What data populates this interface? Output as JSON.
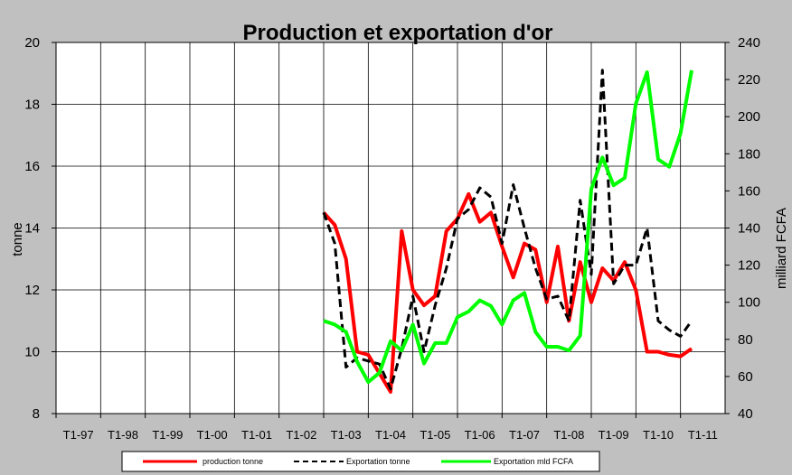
{
  "chart_data": {
    "type": "line",
    "title": "Production et exportation d'or",
    "ylabel_left": "tonne",
    "ylabel_right": "milliard FCFA",
    "ylim_left": [
      8,
      20
    ],
    "ylim_right": [
      40,
      240
    ],
    "yticks_left": [
      "8",
      "10",
      "12",
      "14",
      "16",
      "18",
      "20"
    ],
    "yticks_right": [
      "40",
      "60",
      "80",
      "100",
      "120",
      "140",
      "160",
      "180",
      "200",
      "220",
      "240"
    ],
    "x_categories": [
      "T1-97",
      "T1-98",
      "T1-99",
      "T1-00",
      "T1-01",
      "T1-02",
      "T1-03",
      "T1-04",
      "T1-05",
      "T1-06",
      "T1-07",
      "T1-08",
      "T1-09",
      "T1-10",
      "T1-11"
    ],
    "grid": true,
    "legend_position": "bottom",
    "series": [
      {
        "name": "production tonne",
        "axis": "left",
        "color": "#ff0000",
        "style": "solid",
        "values": [
          [
            2003.0,
            14.5
          ],
          [
            2003.25,
            14.1
          ],
          [
            2003.5,
            13.0
          ],
          [
            2003.75,
            10.0
          ],
          [
            2004.0,
            9.9
          ],
          [
            2004.25,
            9.3
          ],
          [
            2004.5,
            8.7
          ],
          [
            2004.75,
            13.9
          ],
          [
            2005.0,
            12.0
          ],
          [
            2005.25,
            11.5
          ],
          [
            2005.5,
            11.8
          ],
          [
            2005.75,
            13.9
          ],
          [
            2006.0,
            14.3
          ],
          [
            2006.25,
            15.1
          ],
          [
            2006.5,
            14.2
          ],
          [
            2006.75,
            14.5
          ],
          [
            2007.0,
            13.4
          ],
          [
            2007.25,
            12.4
          ],
          [
            2007.5,
            13.5
          ],
          [
            2007.75,
            13.3
          ],
          [
            2008.0,
            11.6
          ],
          [
            2008.25,
            13.4
          ],
          [
            2008.5,
            11.0
          ],
          [
            2008.75,
            12.9
          ],
          [
            2009.0,
            11.6
          ],
          [
            2009.25,
            12.7
          ],
          [
            2009.5,
            12.3
          ],
          [
            2009.75,
            12.9
          ],
          [
            2010.0,
            12.0
          ],
          [
            2010.25,
            10.0
          ],
          [
            2010.5,
            10.0
          ],
          [
            2010.75,
            9.9
          ],
          [
            2011.0,
            9.85
          ],
          [
            2011.25,
            10.1
          ]
        ]
      },
      {
        "name": "Exportation tonne",
        "axis": "left",
        "color": "#000000",
        "style": "dashed",
        "values": [
          [
            2003.0,
            14.5
          ],
          [
            2003.25,
            13.5
          ],
          [
            2003.5,
            9.5
          ],
          [
            2003.75,
            9.8
          ],
          [
            2004.0,
            9.7
          ],
          [
            2004.25,
            9.6
          ],
          [
            2004.5,
            8.8
          ],
          [
            2004.75,
            10.1
          ],
          [
            2005.0,
            11.8
          ],
          [
            2005.25,
            10.0
          ],
          [
            2005.5,
            11.5
          ],
          [
            2005.75,
            12.7
          ],
          [
            2006.0,
            14.3
          ],
          [
            2006.25,
            14.6
          ],
          [
            2006.5,
            15.3
          ],
          [
            2006.75,
            15.0
          ],
          [
            2007.0,
            13.5
          ],
          [
            2007.25,
            15.4
          ],
          [
            2007.5,
            14.0
          ],
          [
            2007.75,
            12.7
          ],
          [
            2008.0,
            11.7
          ],
          [
            2008.25,
            11.8
          ],
          [
            2008.5,
            11.0
          ],
          [
            2008.75,
            14.9
          ],
          [
            2009.0,
            12.5
          ],
          [
            2009.25,
            19.1
          ],
          [
            2009.5,
            12.2
          ],
          [
            2009.75,
            12.8
          ],
          [
            2010.0,
            12.8
          ],
          [
            2010.25,
            14.0
          ],
          [
            2010.5,
            11.0
          ],
          [
            2010.75,
            10.7
          ],
          [
            2011.0,
            10.5
          ],
          [
            2011.25,
            11.0
          ]
        ]
      },
      {
        "name": "Exportation mld FCFA",
        "axis": "right",
        "color": "#00ff00",
        "style": "solid",
        "values": [
          [
            2003.0,
            90
          ],
          [
            2003.25,
            88
          ],
          [
            2003.5,
            84
          ],
          [
            2003.75,
            68
          ],
          [
            2004.0,
            57
          ],
          [
            2004.25,
            62
          ],
          [
            2004.5,
            79
          ],
          [
            2004.75,
            74
          ],
          [
            2005.0,
            88
          ],
          [
            2005.25,
            67
          ],
          [
            2005.5,
            78
          ],
          [
            2005.75,
            78
          ],
          [
            2006.0,
            92
          ],
          [
            2006.25,
            95
          ],
          [
            2006.5,
            101
          ],
          [
            2006.75,
            98
          ],
          [
            2007.0,
            88
          ],
          [
            2007.25,
            101
          ],
          [
            2007.5,
            105
          ],
          [
            2007.75,
            84
          ],
          [
            2008.0,
            76
          ],
          [
            2008.25,
            76
          ],
          [
            2008.5,
            74
          ],
          [
            2008.75,
            82
          ],
          [
            2009.0,
            161
          ],
          [
            2009.25,
            178
          ],
          [
            2009.5,
            163
          ],
          [
            2009.75,
            167
          ],
          [
            2010.0,
            207
          ],
          [
            2010.25,
            224
          ],
          [
            2010.5,
            177
          ],
          [
            2010.75,
            173
          ],
          [
            2011.0,
            191
          ],
          [
            2011.25,
            225
          ]
        ]
      }
    ]
  }
}
